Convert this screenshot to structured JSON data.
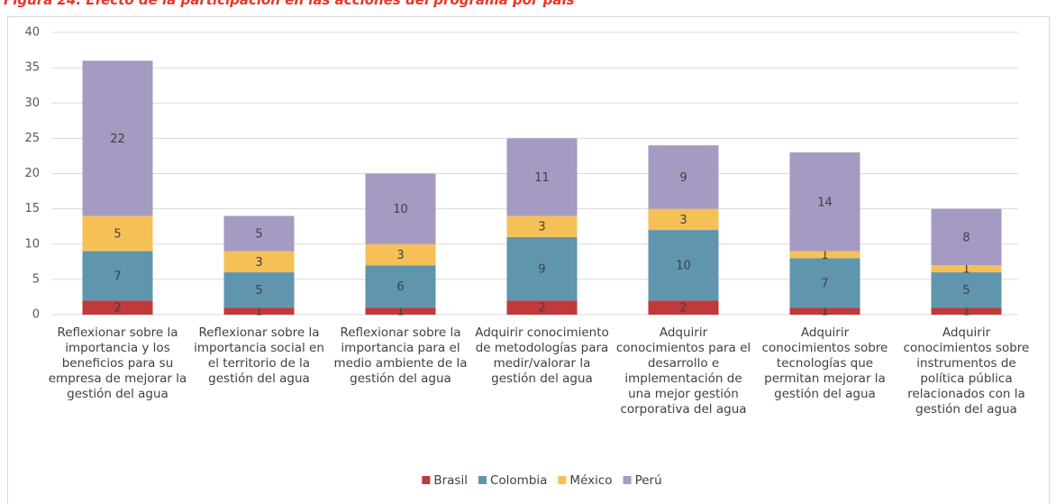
{
  "chart_data": {
    "type": "stacked_bar",
    "title": "Figura 24. Efecto de la participación en las acciones del programa por país",
    "categories": [
      "Reflexionar sobre la importancia y los beneficios para su empresa de mejorar la gestión del agua",
      "Reflexionar sobre la importancia social en el territorio de la gestión del agua",
      "Reflexionar sobre la importancia para el medio ambiente de la gestión del agua",
      "Adquirir conocimiento de metodologías para medir/valorar la gestión del agua",
      "Adquirir conocimientos para el desarrollo e implementación de una mejor gestión corporativa del agua",
      "Adquirir conocimientos sobre tecnologías que permitan mejorar la gestión del agua",
      "Adquirir conocimientos sobre instrumentos de política pública relacionados con la gestión del agua"
    ],
    "series": [
      {
        "name": "Brasil",
        "color": "#c0393b",
        "values": [
          2,
          1,
          1,
          2,
          2,
          1,
          1
        ]
      },
      {
        "name": "Colombia",
        "color": "#5f95ad",
        "values": [
          7,
          5,
          6,
          9,
          10,
          7,
          5
        ]
      },
      {
        "name": "México",
        "color": "#f5c056",
        "values": [
          5,
          3,
          3,
          3,
          3,
          1,
          1
        ]
      },
      {
        "name": "Perú",
        "color": "#a59ac2",
        "values": [
          22,
          5,
          10,
          11,
          9,
          14,
          8
        ]
      }
    ],
    "ylim": [
      0,
      40
    ],
    "yticks": [
      0,
      5,
      10,
      15,
      20,
      25,
      30,
      35,
      40
    ],
    "grid": true,
    "legend": "bottom"
  }
}
